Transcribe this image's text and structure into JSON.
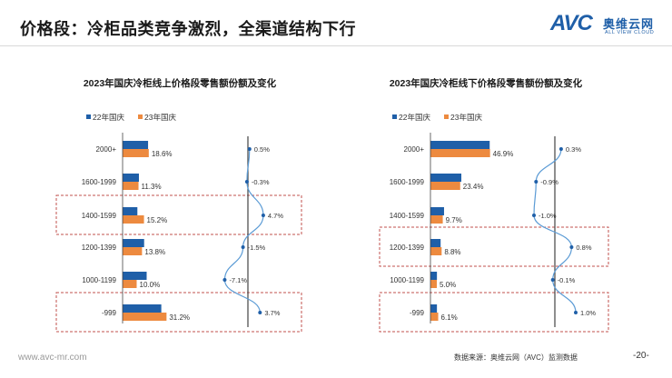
{
  "header": {
    "title": "价格段：冷柜品类竞争激烈，全渠道结构下行",
    "logo": {
      "mark": "AVC",
      "name": "奥维云网",
      "tagline": "ALL VIEW CLOUD"
    }
  },
  "footer": {
    "url": "www.avc-mr.com",
    "source": "数据来源：奥维云网（AVC）监测数据",
    "page": "-20-"
  },
  "colors": {
    "series22": "#1f5fa8",
    "series23": "#ed8a3f",
    "curve": "#5b9bd5",
    "highlight": "#c0504d"
  },
  "chart_data": [
    {
      "type": "bar",
      "title": "2023年国庆冷柜线上价格段零售额份额及变化",
      "categories": [
        "2000+",
        "1600-1999",
        "1400-1599",
        "1200-1399",
        "1000-1199",
        "-999"
      ],
      "series": [
        {
          "name": "22年国庆",
          "values": [
            18.1,
            11.6,
            10.5,
            15.3,
            17.1,
            27.5
          ]
        },
        {
          "name": "23年国庆",
          "values": [
            18.6,
            11.3,
            15.2,
            13.8,
            10.0,
            31.2
          ]
        }
      ],
      "value_labels": [
        "18.6%",
        "11.3%",
        "15.2%",
        "13.8%",
        "10.0%",
        "31.2%"
      ],
      "change": [
        0.5,
        -0.3,
        4.7,
        -1.5,
        -7.1,
        3.7
      ],
      "change_labels": [
        "0.5%",
        "-0.3%",
        "4.7%",
        "-1.5%",
        "-7.1%",
        "3.7%"
      ],
      "highlighted_categories": [
        "1400-1599",
        "-999"
      ],
      "legend": "top-left"
    },
    {
      "type": "bar",
      "title": "2023年国庆冷柜线下价格段零售额份额及变化",
      "categories": [
        "2000+",
        "1600-1999",
        "1400-1599",
        "1200-1399",
        "1000-1199",
        "-999"
      ],
      "series": [
        {
          "name": "22年国庆",
          "values": [
            46.6,
            24.3,
            10.7,
            8.0,
            5.1,
            5.1
          ]
        },
        {
          "name": "23年国庆",
          "values": [
            46.9,
            23.4,
            9.7,
            8.8,
            5.0,
            6.1
          ]
        }
      ],
      "value_labels": [
        "46.9%",
        "23.4%",
        "9.7%",
        "8.8%",
        "5.0%",
        "6.1%"
      ],
      "change": [
        0.3,
        -0.9,
        -1.0,
        0.8,
        -0.1,
        1.0
      ],
      "change_labels": [
        "0.3%",
        "-0.9%",
        "-1.0%",
        "0.8%",
        "-0.1%",
        "1.0%"
      ],
      "highlighted_categories": [
        "1200-1399",
        "-999"
      ],
      "legend": "top-left"
    }
  ]
}
